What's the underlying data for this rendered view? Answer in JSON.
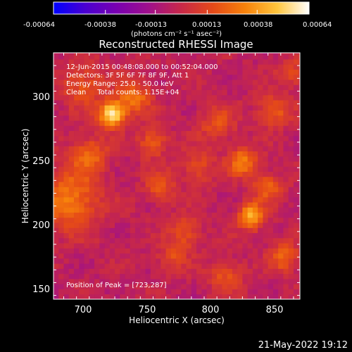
{
  "colorbar": {
    "ticks": [
      "-0.00064",
      "-0.00038",
      "-0.00013",
      "0.00013",
      "0.00038",
      "0.00064"
    ],
    "units": "(photons cm⁻² s⁻¹ asec⁻²)",
    "colors": [
      "#0000ff",
      "#4b00d0",
      "#7a00b0",
      "#a0108a",
      "#c82848",
      "#e54a18",
      "#f7820a",
      "#ffc53d",
      "#ffffff"
    ]
  },
  "image_panel": {
    "annotation_lines": [
      "12-Jun-2015 00:48:08.000 to 00:52:04.000",
      "Detectors: 3F 5F 6F 7F 8F 9F, Att 1",
      "Energy Range: 25.0 - 50.0 keV",
      "Clean     Total counts: 1.15E+04"
    ],
    "peak_label": "Position of Peak = [723,287]"
  },
  "footer": {
    "timestamp": "21-May-2022 19:12"
  },
  "chart_data": {
    "type": "heatmap",
    "title": "Reconstructed RHESSI Image",
    "xlabel": "Heliocentric X (arcsec)",
    "ylabel": "Heliocentric Y (arcsec)",
    "xlim": [
      677,
      870
    ],
    "ylim": [
      142,
      335
    ],
    "x_ticks": [
      700,
      750,
      800,
      850
    ],
    "y_ticks": [
      150,
      200,
      250,
      300
    ],
    "colorbar_range": [
      -0.00064,
      0.00064
    ],
    "peak": [
      723,
      287
    ],
    "grid": false,
    "grid_resolution_arcsec": 4,
    "sources": [
      {
        "x": 723,
        "y": 287,
        "amp": 0.00064,
        "width": 7
      },
      {
        "x": 740,
        "y": 300,
        "amp": 0.00032,
        "width": 9
      },
      {
        "x": 700,
        "y": 310,
        "amp": 0.00022,
        "width": 12
      },
      {
        "x": 690,
        "y": 220,
        "amp": 0.00034,
        "width": 16
      },
      {
        "x": 705,
        "y": 255,
        "amp": 0.00028,
        "width": 10
      },
      {
        "x": 755,
        "y": 265,
        "amp": 0.00026,
        "width": 8
      },
      {
        "x": 760,
        "y": 230,
        "amp": 0.00024,
        "width": 8
      },
      {
        "x": 780,
        "y": 195,
        "amp": 0.00022,
        "width": 9
      },
      {
        "x": 790,
        "y": 245,
        "amp": 0.0002,
        "width": 9
      },
      {
        "x": 805,
        "y": 280,
        "amp": 0.0002,
        "width": 10
      },
      {
        "x": 812,
        "y": 160,
        "amp": 0.00022,
        "width": 9
      },
      {
        "x": 825,
        "y": 250,
        "amp": 0.00034,
        "width": 8
      },
      {
        "x": 832,
        "y": 207,
        "amp": 0.00048,
        "width": 7
      },
      {
        "x": 845,
        "y": 230,
        "amp": 0.00026,
        "width": 8
      },
      {
        "x": 850,
        "y": 290,
        "amp": 0.00025,
        "width": 9
      },
      {
        "x": 858,
        "y": 175,
        "amp": 0.00027,
        "width": 8
      },
      {
        "x": 865,
        "y": 320,
        "amp": 0.00018,
        "width": 8
      },
      {
        "x": 770,
        "y": 175,
        "amp": 0.00018,
        "width": 8
      }
    ]
  }
}
